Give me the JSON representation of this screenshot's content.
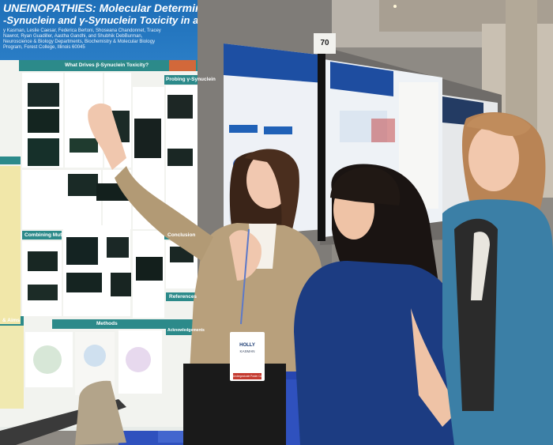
{
  "poster_main": {
    "title_line1": "UNEINOPATHIES: Molecular Determinants of",
    "title_line2": "-Synuclein and γ-Synuclein Toxicity in a Yeast Model",
    "authors": "y Kasman, Leslie Caesar, Federica Bertoni, Shoseana Chandonnet, Tracey Nawrot, Ryan Guadiller, Aastha Gandhi, and Shubhik DebBurman, Neuroscience & Biology Departments, Biochemistry & Molecular Biology Program, Forest College, Illinois 60045",
    "sections": {
      "what_drives": "What Drives β-Synuclein Toxicity?",
      "probing": "Probing γ-Synuclein",
      "combining": "Combining Mutants",
      "conclusion": "Conclusion",
      "methods": "Methods",
      "references": "References",
      "aims": "& Aims",
      "ackn": "Acknowledgements"
    }
  },
  "booth_number": "70",
  "name_badge": {
    "first_name": "HOLLY",
    "last_name": "KASMAN",
    "ribbon": "Undergraduate Poster Competition"
  },
  "colors": {
    "poster_blue": "#1e6fb8",
    "poster_green": "#2c8a8a",
    "wall": "#8b8680",
    "carpet": "#1e3fa8"
  }
}
